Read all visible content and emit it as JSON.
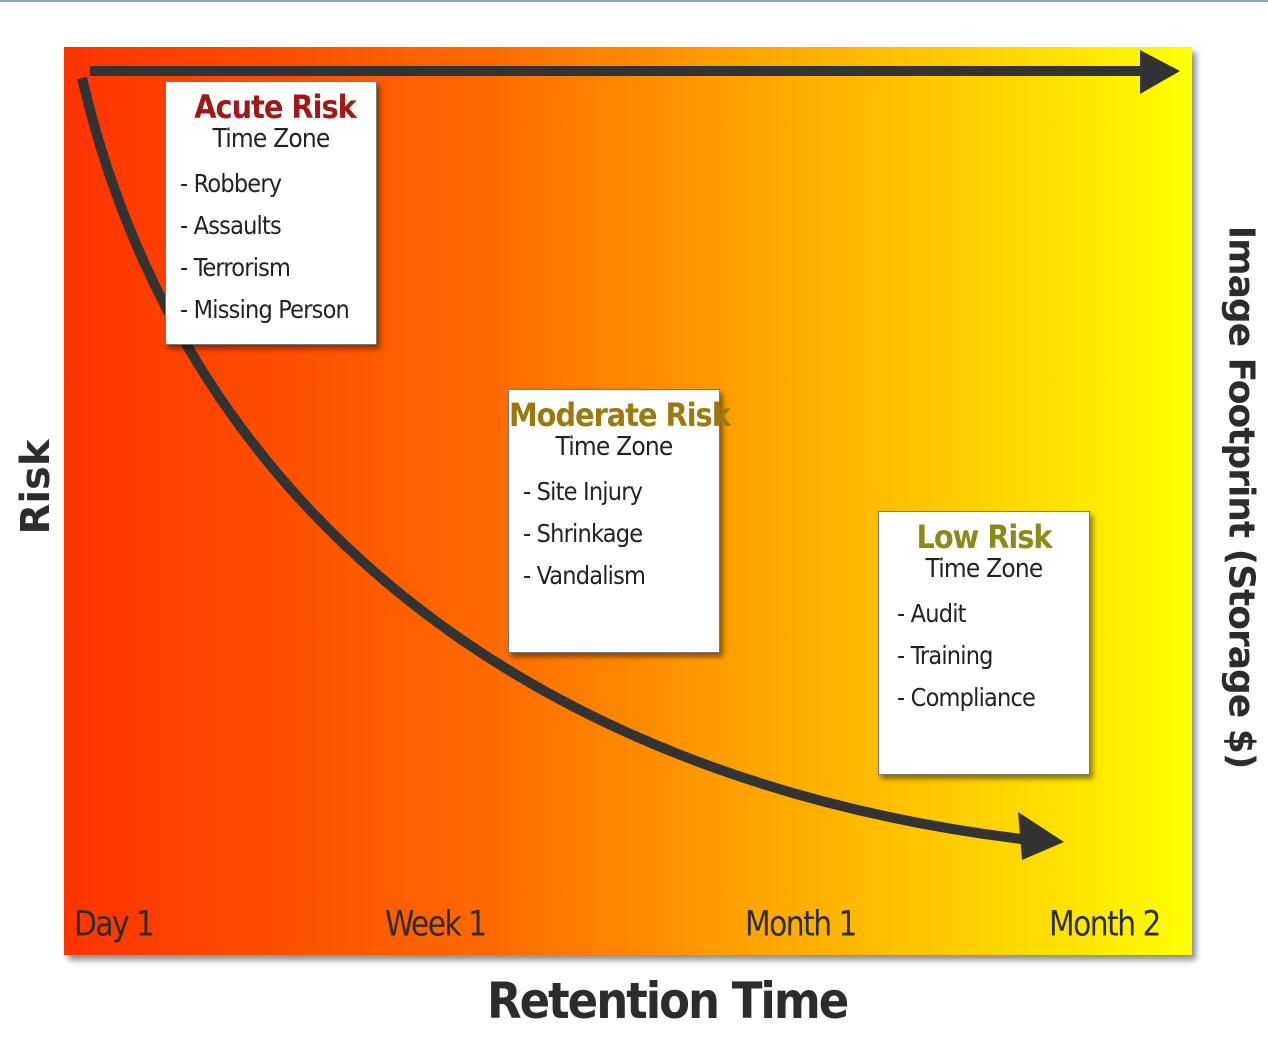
{
  "axes": {
    "x_label": "Retention Time",
    "y_label": "Risk",
    "y2_label": "Image Footprint (Storage $)",
    "ticks": [
      "Day 1",
      "Week 1",
      "Month 1",
      "Month 2"
    ]
  },
  "zones": [
    {
      "title": "Acute Risk",
      "subtitle": "Time Zone",
      "items": [
        "Robbery",
        "Assaults",
        "Terrorism",
        "Missing Person"
      ]
    },
    {
      "title": "Moderate Risk",
      "subtitle": "Time Zone",
      "items": [
        "Site Injury",
        "Shrinkage",
        "Vandalism"
      ]
    },
    {
      "title": "Low Risk",
      "subtitle": "Time Zone",
      "items": [
        "Audit",
        "Training",
        "Compliance"
      ]
    }
  ],
  "colors": {
    "gradient_start": "#ff3300",
    "gradient_end": "#ffff00",
    "arrow": "#333333",
    "acute_title": "#a01818",
    "moderate_title": "#9a7a10",
    "low_title": "#8a8a18"
  },
  "curves": {
    "risk_curve": "decreasing",
    "storage_line": "flat"
  }
}
